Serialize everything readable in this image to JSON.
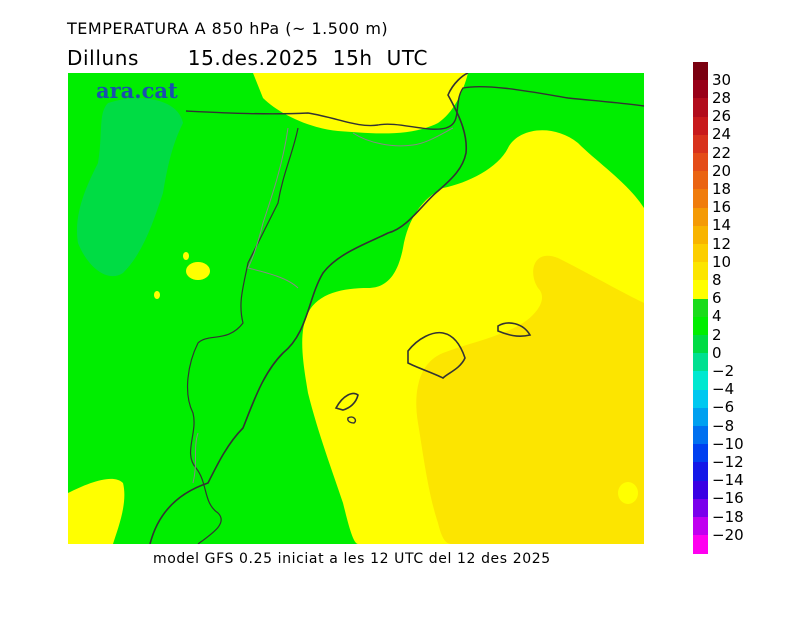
{
  "title_line1": "TEMPERATURA A 850 hPa (~ 1.500 m)",
  "title_line2": "Dilluns       15.des.2025  15h  UTC",
  "logo_text": "ara.cat",
  "footer": "model GFS 0.25 iniciat a les 12 UTC del 12 des 2025",
  "legend": {
    "ticks": [
      "30",
      "28",
      "26",
      "24",
      "22",
      "20",
      "18",
      "16",
      "14",
      "12",
      "10",
      "8",
      "6",
      "4",
      "2",
      "0",
      "−2",
      "−4",
      "−6",
      "−8",
      "−10",
      "−12",
      "−14",
      "−16",
      "−18",
      "−20"
    ],
    "colors": [
      "#7a0010",
      "#990018",
      "#b20c1c",
      "#c81a1c",
      "#d8321c",
      "#e44c18",
      "#ea6412",
      "#f07c0c",
      "#f49a06",
      "#f8b400",
      "#fcce00",
      "#fce500",
      "#ffff00",
      "#1adc1a",
      "#00ee00",
      "#00dc44",
      "#00e090",
      "#00e8d0",
      "#00c8f0",
      "#00a0f0",
      "#0070f0",
      "#0040f0",
      "#1418e8",
      "#3a00e4",
      "#7a00ec",
      "#c000f0",
      "#ff00f0"
    ]
  },
  "map_colors": {
    "green": "#00ee00",
    "dark_green": "#00dc44",
    "yellow": "#ffff00",
    "gold": "#fce500",
    "coast": "#333333",
    "border": "#888888",
    "logo": "#1a4fae"
  }
}
